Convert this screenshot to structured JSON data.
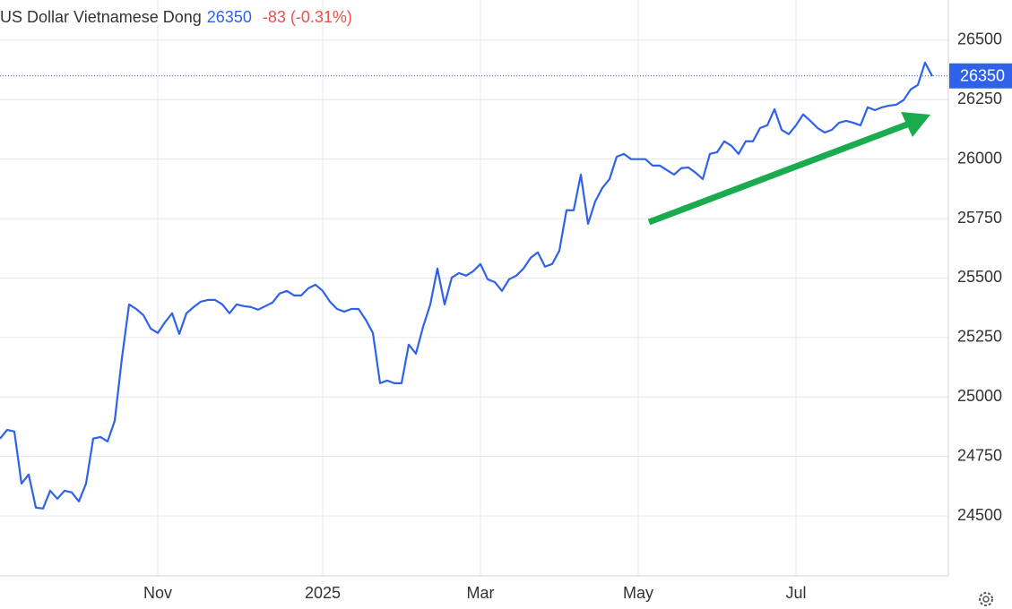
{
  "chart_data": {
    "type": "line",
    "title": "US Dollar Vietnamese Dong",
    "last_price": 26350,
    "change": "-83 (-0.31%)",
    "categories": [
      null,
      null,
      null,
      null,
      null,
      null,
      null,
      null,
      null,
      null,
      null,
      null,
      null,
      null,
      null,
      null,
      null,
      null,
      null,
      null,
      null,
      null,
      "Nov",
      null,
      null,
      null,
      null,
      null,
      null,
      null,
      null,
      null,
      null,
      null,
      null,
      null,
      null,
      null,
      null,
      null,
      null,
      null,
      null,
      null,
      null,
      "2025",
      null,
      null,
      null,
      null,
      null,
      null,
      null,
      null,
      null,
      null,
      null,
      null,
      null,
      null,
      null,
      null,
      null,
      null,
      null,
      null,
      null,
      "Mar",
      null,
      null,
      null,
      null,
      null,
      null,
      null,
      null,
      null,
      null,
      null,
      null,
      null,
      null,
      null,
      null,
      null,
      null,
      null,
      null,
      null,
      "May",
      null,
      null,
      null,
      null,
      null,
      null,
      null,
      null,
      null,
      null,
      null,
      null,
      null,
      null,
      null,
      null,
      null,
      null,
      null,
      null,
      null,
      "Jul",
      null,
      null,
      null,
      null,
      null,
      null,
      null,
      null,
      null,
      null,
      null,
      null,
      null,
      null,
      null,
      null,
      null,
      null,
      null
    ],
    "values": [
      24825,
      24862,
      24855,
      24636,
      24674,
      24535,
      24531,
      24606,
      24572,
      24606,
      24599,
      24561,
      24636,
      24825,
      24832,
      24813,
      24900,
      25163,
      25389,
      25370,
      25344,
      25288,
      25269,
      25314,
      25352,
      25265,
      25352,
      25378,
      25401,
      25408,
      25408,
      25389,
      25352,
      25389,
      25382,
      25378,
      25367,
      25382,
      25397,
      25435,
      25446,
      25427,
      25427,
      25457,
      25472,
      25446,
      25401,
      25370,
      25359,
      25370,
      25370,
      25325,
      25269,
      25058,
      25069,
      25058,
      25058,
      25220,
      25182,
      25295,
      25389,
      25540,
      25389,
      25502,
      25521,
      25510,
      25529,
      25559,
      25495,
      25483,
      25446,
      25495,
      25510,
      25540,
      25585,
      25608,
      25548,
      25559,
      25615,
      25785,
      25785,
      25935,
      25728,
      25822,
      25879,
      25916,
      26010,
      26022,
      26000,
      26000,
      26000,
      25973,
      25973,
      25954,
      25935,
      25962,
      25965,
      25943,
      25916,
      26022,
      26029,
      26075,
      26056,
      26022,
      26075,
      26075,
      26131,
      26142,
      26210,
      26123,
      26105,
      26142,
      26188,
      26161,
      26131,
      26112,
      26123,
      26153,
      26161,
      26153,
      26142,
      26218,
      26206,
      26218,
      26225,
      26229,
      26248,
      26293,
      26312,
      26406,
      26349
    ],
    "color": "#2f62e8",
    "ylim": [
      24248,
      26669
    ],
    "yticks": [
      24500,
      24750,
      25000,
      25250,
      25500,
      25750,
      26000,
      26250,
      26500
    ],
    "grid": true
  }
}
